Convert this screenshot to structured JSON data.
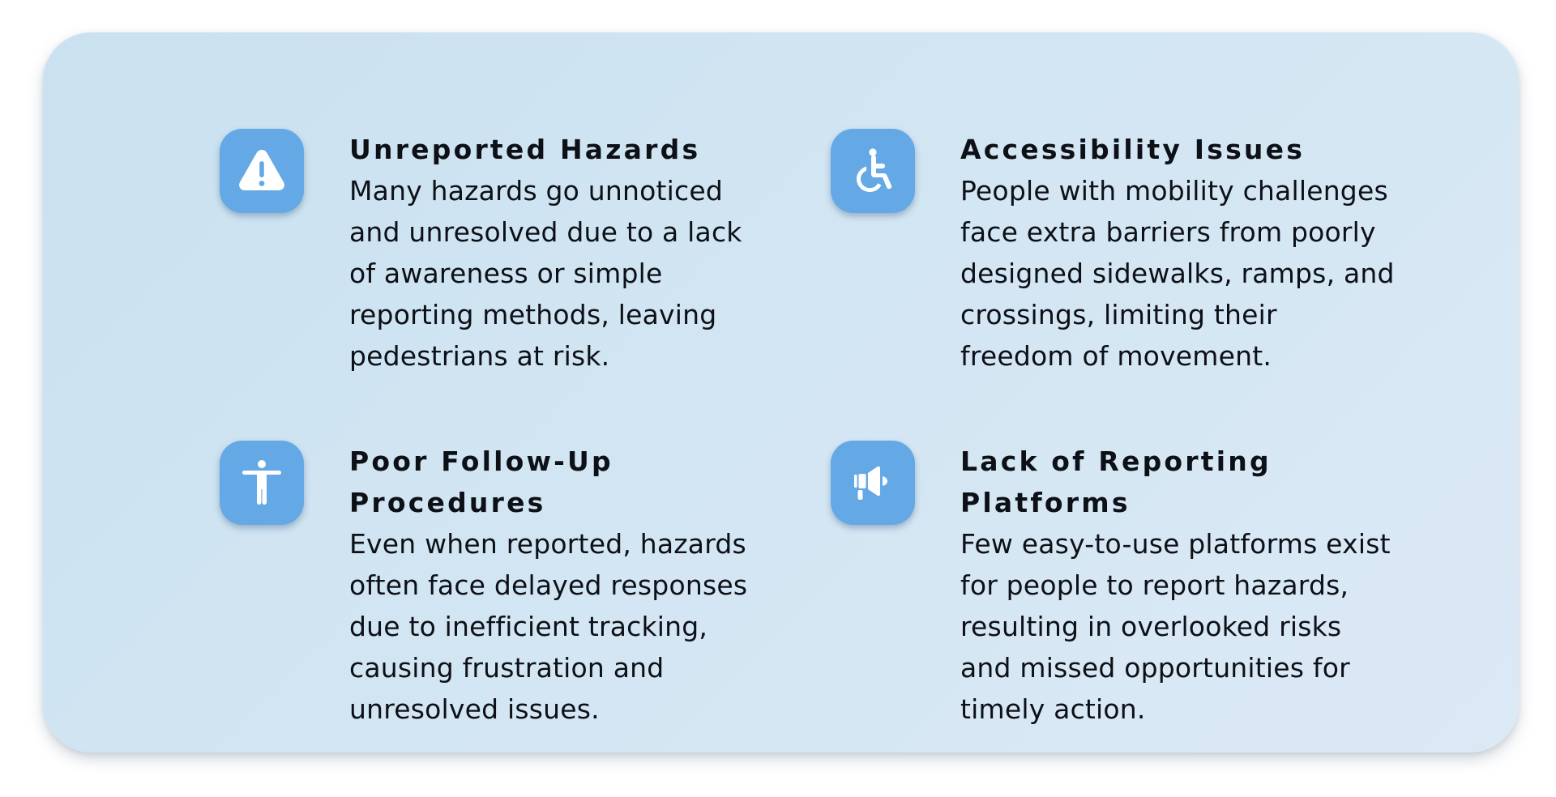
{
  "cards": [
    {
      "icon": "warning-triangle-icon",
      "title": "Unreported Hazards",
      "lines": [
        "Many hazards go unnoticed",
        "and unresolved due to a lack",
        "of awareness or simple",
        "reporting methods, leaving",
        "pedestrians at risk."
      ]
    },
    {
      "icon": "wheelchair-icon",
      "title": "Accessibility Issues",
      "lines": [
        "People with mobility challenges",
        "face extra barriers from poorly",
        "designed sidewalks, ramps, and",
        "crossings, limiting their",
        "freedom of movement."
      ]
    },
    {
      "icon": "accessibility-person-icon",
      "title_lines": [
        "Poor Follow-Up",
        "Procedures"
      ],
      "lines": [
        "Even when reported, hazards",
        "often face delayed responses",
        "due to inefficient tracking,",
        "causing frustration and",
        "unresolved issues."
      ]
    },
    {
      "icon": "megaphone-icon",
      "title_lines": [
        "Lack of Reporting",
        "Platforms"
      ],
      "lines": [
        "Few easy-to-use platforms exist",
        "for people to report hazards,",
        "resulting in overlooked risks",
        "and missed opportunities for",
        "timely action."
      ]
    }
  ],
  "colors": {
    "panel": "#d0e4f2",
    "icon_bg": "#64a9e6",
    "icon_fg": "#ffffff",
    "text": "#0d1016"
  }
}
